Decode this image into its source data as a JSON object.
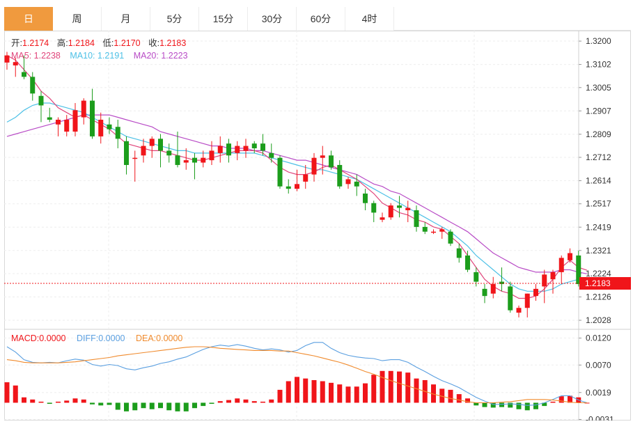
{
  "tabs": [
    {
      "label": "日",
      "active": true
    },
    {
      "label": "周",
      "active": false
    },
    {
      "label": "月",
      "active": false
    },
    {
      "label": "5分",
      "active": false
    },
    {
      "label": "15分",
      "active": false
    },
    {
      "label": "30分",
      "active": false
    },
    {
      "label": "60分",
      "active": false
    },
    {
      "label": "4时",
      "active": false
    }
  ],
  "info": {
    "open_label": "开:",
    "open": "1.2174",
    "high_label": "高:",
    "high": "1.2184",
    "low_label": "低:",
    "low": "1.2170",
    "close_label": "收:",
    "close": "1.2183",
    "ma5_label": "MA5: ",
    "ma5": "1.2238",
    "ma10_label": "MA10: ",
    "ma10": "1.2191",
    "ma20_label": "MA20: ",
    "ma20": "1.2223"
  },
  "macd_info": {
    "macd_label": "MACD:",
    "macd": "0.0000",
    "diff_label": "DIFF:",
    "diff": "0.0000",
    "dea_label": "DEA:",
    "dea": "0.0000"
  },
  "colors": {
    "up": "#f0151a",
    "down": "#1c9d1c",
    "ma5": "#e0457b",
    "ma10": "#4cc0e6",
    "ma20": "#b84bc6",
    "diff": "#5a9fe0",
    "dea": "#f08a2c",
    "active_tab": "#f09a3e"
  },
  "chart_data": [
    {
      "type": "candlestick",
      "y_ticks": [
        "1.3200",
        "1.3102",
        "1.3005",
        "1.2907",
        "1.2809",
        "1.2712",
        "1.2614",
        "1.2517",
        "1.2419",
        "1.2321",
        "1.2224",
        "1.2126",
        "1.2028"
      ],
      "ylim": [
        1.1993,
        1.3244
      ],
      "last_price_label": "1.2183",
      "ohlc": [
        [
          1.311,
          1.3155,
          1.308,
          1.314
        ],
        [
          1.3098,
          1.313,
          1.305,
          1.3112
        ],
        [
          1.307,
          1.314,
          1.304,
          1.305
        ],
        [
          1.305,
          1.307,
          1.295,
          1.298
        ],
        [
          1.297,
          1.299,
          1.286,
          1.293
        ],
        [
          1.288,
          1.292,
          1.286,
          1.287
        ],
        [
          1.285,
          1.288,
          1.28,
          1.287
        ],
        [
          1.282,
          1.289,
          1.28,
          1.287
        ],
        [
          1.282,
          1.294,
          1.28,
          1.291
        ],
        [
          1.288,
          1.296,
          1.285,
          1.295
        ],
        [
          1.295,
          1.3,
          1.279,
          1.28
        ],
        [
          1.28,
          1.29,
          1.277,
          1.287
        ],
        [
          1.285,
          1.288,
          1.281,
          1.283
        ],
        [
          1.284,
          1.287,
          1.275,
          1.279
        ],
        [
          1.278,
          1.28,
          1.264,
          1.268
        ],
        [
          1.271,
          1.274,
          1.261,
          1.271
        ],
        [
          1.272,
          1.279,
          1.269,
          1.276
        ],
        [
          1.276,
          1.28,
          1.271,
          1.279
        ],
        [
          1.279,
          1.281,
          1.267,
          1.274
        ],
        [
          1.274,
          1.277,
          1.269,
          1.272
        ],
        [
          1.272,
          1.282,
          1.267,
          1.268
        ],
        [
          1.269,
          1.275,
          1.266,
          1.27
        ],
        [
          1.271,
          1.273,
          1.262,
          1.269
        ],
        [
          1.269,
          1.274,
          1.267,
          1.271
        ],
        [
          1.27,
          1.278,
          1.268,
          1.274
        ],
        [
          1.273,
          1.28,
          1.269,
          1.276
        ],
        [
          1.277,
          1.279,
          1.269,
          1.272
        ],
        [
          1.273,
          1.278,
          1.27,
          1.276
        ],
        [
          1.274,
          1.279,
          1.271,
          1.276
        ],
        [
          1.277,
          1.278,
          1.273,
          1.275
        ],
        [
          1.277,
          1.281,
          1.272,
          1.274
        ],
        [
          1.273,
          1.277,
          1.269,
          1.271
        ],
        [
          1.271,
          1.272,
          1.258,
          1.259
        ],
        [
          1.259,
          1.262,
          1.256,
          1.258
        ],
        [
          1.258,
          1.266,
          1.257,
          1.26
        ],
        [
          1.261,
          1.268,
          1.258,
          1.264
        ],
        [
          1.264,
          1.273,
          1.261,
          1.271
        ],
        [
          1.271,
          1.276,
          1.264,
          1.272
        ],
        [
          1.272,
          1.274,
          1.266,
          1.267
        ],
        [
          1.268,
          1.27,
          1.258,
          1.259
        ],
        [
          1.26,
          1.263,
          1.258,
          1.262
        ],
        [
          1.261,
          1.264,
          1.255,
          1.259
        ],
        [
          1.256,
          1.258,
          1.249,
          1.252
        ],
        [
          1.252,
          1.253,
          1.244,
          1.248
        ],
        [
          1.245,
          1.248,
          1.244,
          1.246
        ],
        [
          1.246,
          1.252,
          1.245,
          1.251
        ],
        [
          1.251,
          1.255,
          1.246,
          1.25
        ],
        [
          1.249,
          1.253,
          1.244,
          1.25
        ],
        [
          1.249,
          1.251,
          1.24,
          1.242
        ],
        [
          1.242,
          1.244,
          1.239,
          1.24
        ],
        [
          1.24,
          1.241,
          1.239,
          1.24
        ],
        [
          1.24,
          1.242,
          1.237,
          1.241
        ],
        [
          1.24,
          1.241,
          1.234,
          1.235
        ],
        [
          1.233,
          1.235,
          1.227,
          1.229
        ],
        [
          1.23,
          1.232,
          1.223,
          1.224
        ],
        [
          1.223,
          1.225,
          1.217,
          1.219
        ],
        [
          1.216,
          1.218,
          1.21,
          1.213
        ],
        [
          1.214,
          1.221,
          1.212,
          1.218
        ],
        [
          1.219,
          1.225,
          1.215,
          1.218
        ],
        [
          1.217,
          1.219,
          1.206,
          1.207
        ],
        [
          1.206,
          1.209,
          1.204,
          1.208
        ],
        [
          1.208,
          1.214,
          1.204,
          1.214
        ],
        [
          1.213,
          1.218,
          1.211,
          1.216
        ],
        [
          1.217,
          1.224,
          1.21,
          1.222
        ],
        [
          1.22,
          1.224,
          1.214,
          1.223
        ],
        [
          1.223,
          1.23,
          1.218,
          1.229
        ],
        [
          1.228,
          1.233,
          1.227,
          1.231
        ],
        [
          1.23,
          1.232,
          1.217,
          1.218
        ],
        [
          1.2174,
          1.2184,
          1.217,
          1.2183
        ]
      ],
      "ma5": [
        1.314,
        1.312,
        1.308,
        1.304,
        1.299,
        1.296,
        1.292,
        1.29,
        1.288,
        1.289,
        1.287,
        1.285,
        1.283,
        1.28,
        1.277,
        1.276,
        1.275,
        1.274,
        1.274,
        1.273,
        1.272,
        1.271,
        1.27,
        1.27,
        1.271,
        1.272,
        1.273,
        1.274,
        1.274,
        1.274,
        1.273,
        1.27,
        1.267,
        1.265,
        1.264,
        1.264,
        1.265,
        1.267,
        1.268,
        1.266,
        1.264,
        1.262,
        1.259,
        1.256,
        1.252,
        1.25,
        1.248,
        1.247,
        1.245,
        1.244,
        1.242,
        1.241,
        1.238,
        1.235,
        1.23,
        1.225,
        1.22,
        1.217,
        1.215,
        1.214,
        1.212,
        1.212,
        1.213,
        1.216,
        1.22,
        1.225,
        1.228,
        1.225,
        1.2238
      ],
      "ma10": [
        1.286,
        1.288,
        1.291,
        1.293,
        1.294,
        1.294,
        1.293,
        1.292,
        1.291,
        1.29,
        1.288,
        1.286,
        1.284,
        1.282,
        1.28,
        1.279,
        1.278,
        1.277,
        1.276,
        1.275,
        1.274,
        1.274,
        1.273,
        1.273,
        1.273,
        1.273,
        1.273,
        1.273,
        1.273,
        1.273,
        1.272,
        1.271,
        1.27,
        1.269,
        1.268,
        1.267,
        1.266,
        1.266,
        1.265,
        1.264,
        1.263,
        1.262,
        1.26,
        1.258,
        1.256,
        1.254,
        1.252,
        1.25,
        1.248,
        1.246,
        1.244,
        1.242,
        1.24,
        1.237,
        1.234,
        1.23,
        1.227,
        1.224,
        1.221,
        1.218,
        1.216,
        1.215,
        1.215,
        1.215,
        1.216,
        1.218,
        1.219,
        1.22,
        1.2191
      ],
      "ma20": [
        1.28,
        1.281,
        1.282,
        1.283,
        1.284,
        1.285,
        1.286,
        1.287,
        1.288,
        1.289,
        1.289,
        1.289,
        1.289,
        1.288,
        1.287,
        1.286,
        1.285,
        1.284,
        1.282,
        1.281,
        1.28,
        1.279,
        1.278,
        1.277,
        1.276,
        1.276,
        1.275,
        1.275,
        1.275,
        1.274,
        1.274,
        1.273,
        1.272,
        1.271,
        1.27,
        1.27,
        1.269,
        1.268,
        1.267,
        1.266,
        1.265,
        1.264,
        1.262,
        1.26,
        1.259,
        1.257,
        1.256,
        1.254,
        1.252,
        1.25,
        1.248,
        1.246,
        1.244,
        1.242,
        1.24,
        1.237,
        1.234,
        1.231,
        1.229,
        1.227,
        1.225,
        1.224,
        1.223,
        1.223,
        1.223,
        1.224,
        1.224,
        1.223,
        1.2223
      ]
    },
    {
      "type": "macd",
      "y_ticks": [
        "0.0120",
        "0.0070",
        "0.0019",
        "-0.0031"
      ],
      "ylim": [
        -0.0033,
        0.0135
      ],
      "diff": [
        0.0104,
        0.0094,
        0.008,
        0.0075,
        0.0074,
        0.0075,
        0.0074,
        0.0078,
        0.0081,
        0.0079,
        0.0071,
        0.0068,
        0.0071,
        0.0069,
        0.0063,
        0.0061,
        0.0065,
        0.0068,
        0.0073,
        0.0076,
        0.0081,
        0.0085,
        0.0092,
        0.0099,
        0.0104,
        0.0107,
        0.0105,
        0.0108,
        0.0105,
        0.0101,
        0.0098,
        0.01,
        0.0098,
        0.0094,
        0.0097,
        0.0106,
        0.0112,
        0.0112,
        0.0101,
        0.0093,
        0.0088,
        0.0085,
        0.0083,
        0.0082,
        0.0078,
        0.008,
        0.008,
        0.0075,
        0.0066,
        0.0058,
        0.0049,
        0.0041,
        0.0035,
        0.0028,
        0.0019,
        0.001,
        0.0003,
        -0.0003,
        -0.0003,
        -0.0002,
        -0.0003,
        -0.0005,
        -0.0004,
        0.0,
        0.0006,
        0.0013,
        0.0013,
        0.0005,
        0.0
      ],
      "dea": [
        0.008,
        0.0078,
        0.0075,
        0.0074,
        0.0074,
        0.0074,
        0.0074,
        0.0075,
        0.0076,
        0.0078,
        0.008,
        0.0082,
        0.0084,
        0.0087,
        0.0089,
        0.0091,
        0.0093,
        0.0095,
        0.0097,
        0.0099,
        0.0101,
        0.0103,
        0.0104,
        0.0104,
        0.0103,
        0.0101,
        0.01,
        0.0099,
        0.0098,
        0.0097,
        0.0097,
        0.0097,
        0.0096,
        0.0096,
        0.0093,
        0.009,
        0.0087,
        0.0083,
        0.0079,
        0.0075,
        0.007,
        0.0064,
        0.0058,
        0.0053,
        0.0047,
        0.0041,
        0.0036,
        0.0031,
        0.0026,
        0.0021,
        0.0016,
        0.0012,
        0.0008,
        0.0005,
        0.0002,
        0.0,
        0.0,
        0.0,
        0.0001,
        0.0002,
        0.0004,
        0.0006,
        0.0006,
        0.0006,
        0.0005,
        0.0003,
        0.0001,
        0.0,
        0.0
      ],
      "macd": [
        0.0038,
        0.0032,
        0.001,
        0.0006,
        0.0002,
        -0.0002,
        0.0002,
        0.0004,
        0.0008,
        0.0006,
        -0.0003,
        -0.0005,
        -0.0004,
        -0.0013,
        -0.0016,
        -0.0014,
        -0.001,
        -0.0012,
        -0.001,
        -0.0014,
        -0.0016,
        -0.0016,
        -0.001,
        -0.0006,
        -0.0002,
        0.0003,
        0.0005,
        0.0008,
        0.0006,
        0.0003,
        0.0002,
        0.0006,
        0.0024,
        0.004,
        0.0048,
        0.0045,
        0.0042,
        0.004,
        0.0037,
        0.0034,
        0.003,
        0.003,
        0.0036,
        0.0052,
        0.0059,
        0.0059,
        0.0058,
        0.0056,
        0.0045,
        0.0042,
        0.0034,
        0.0026,
        0.0024,
        0.0016,
        0.0008,
        -0.0005,
        -0.0008,
        -0.0009,
        -0.0008,
        -0.0009,
        -0.0012,
        -0.0014,
        -0.0012,
        -0.0006,
        0.0002,
        0.0012,
        0.0013,
        0.001,
        0.0
      ]
    }
  ]
}
